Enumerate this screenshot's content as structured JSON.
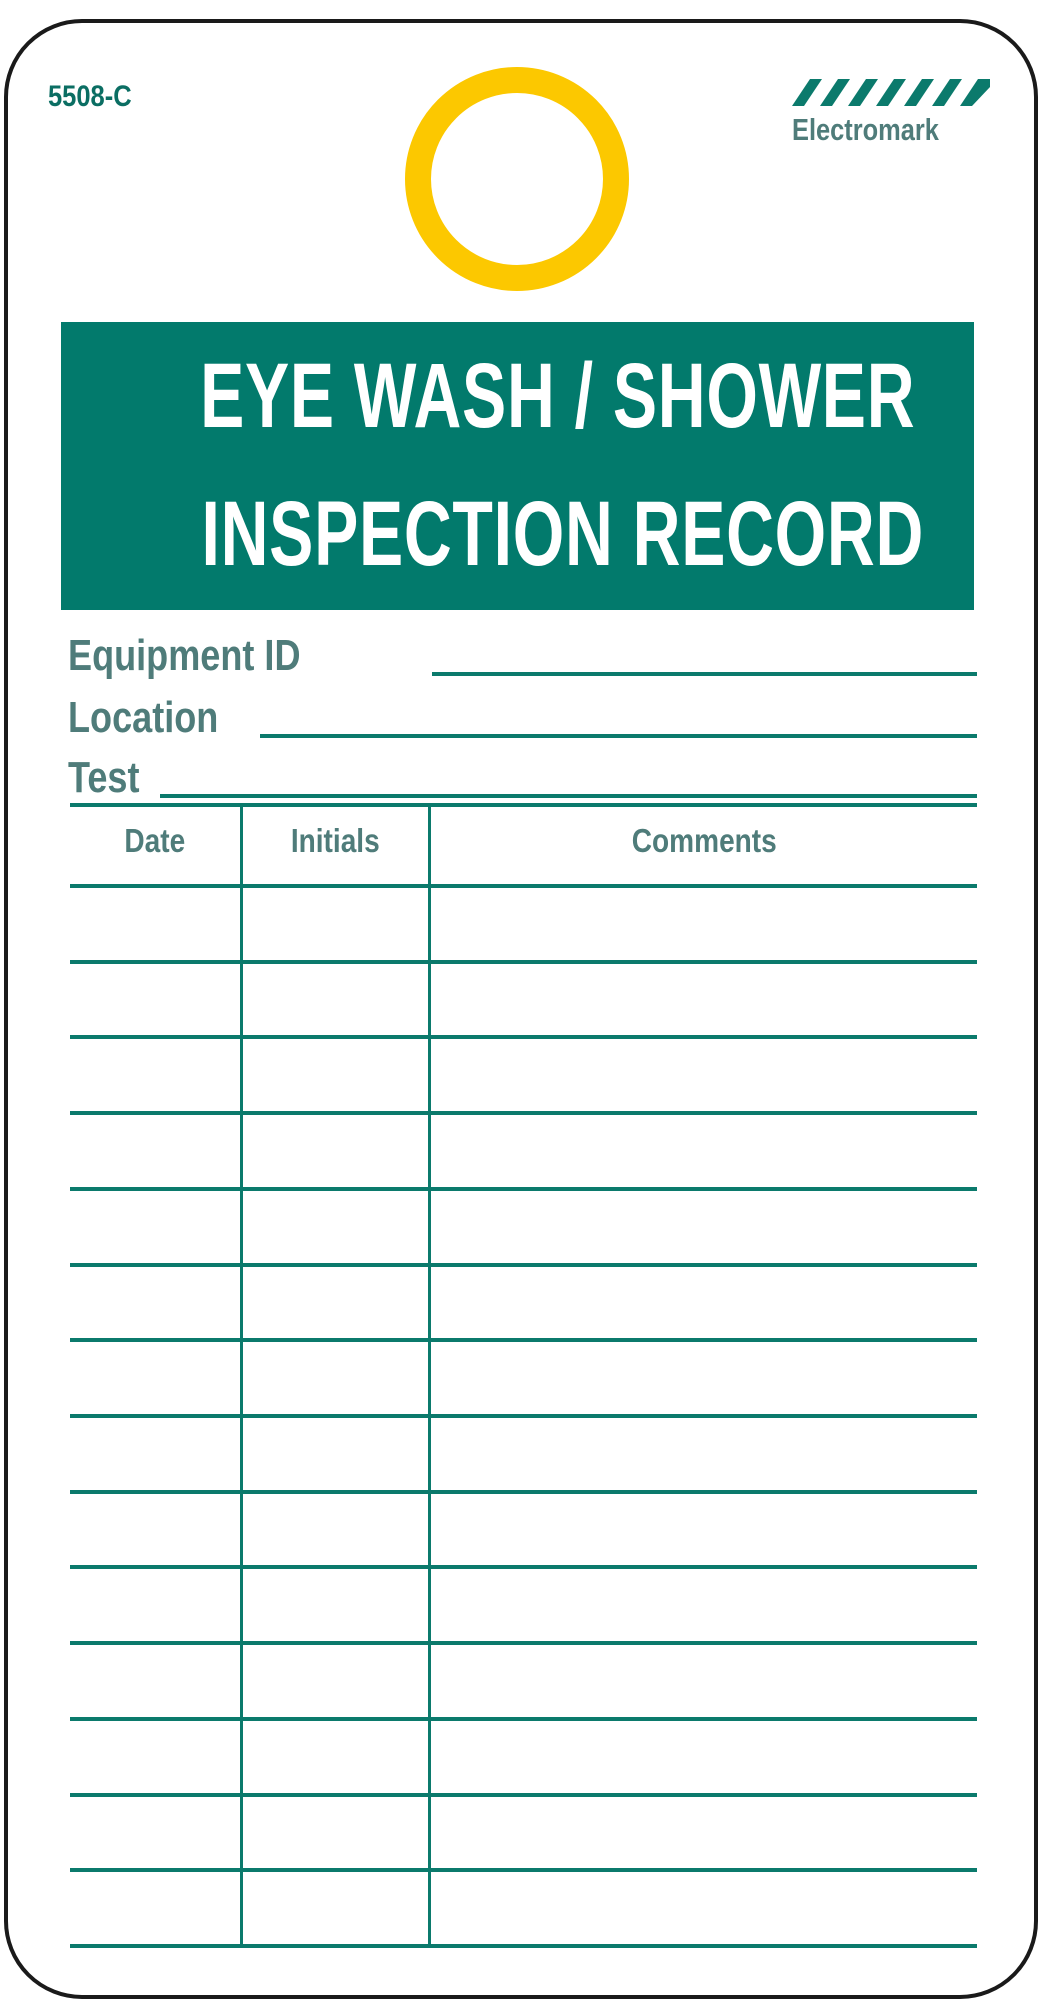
{
  "tag": {
    "code": "5508-C",
    "brand": "Electromark",
    "colors": {
      "teal": "#027a6c",
      "label": "#4f7c7a",
      "ring": "#fcc800"
    },
    "title_lines": [
      "EYE WASH / SHOWER",
      "INSPECTION  RECORD"
    ],
    "fields": [
      {
        "label": "Equipment ID",
        "value": ""
      },
      {
        "label": "Location",
        "value": ""
      },
      {
        "label": "Test",
        "value": ""
      }
    ],
    "table": {
      "columns": [
        "Date",
        "Initials",
        "Comments"
      ],
      "row_count": 14
    }
  }
}
